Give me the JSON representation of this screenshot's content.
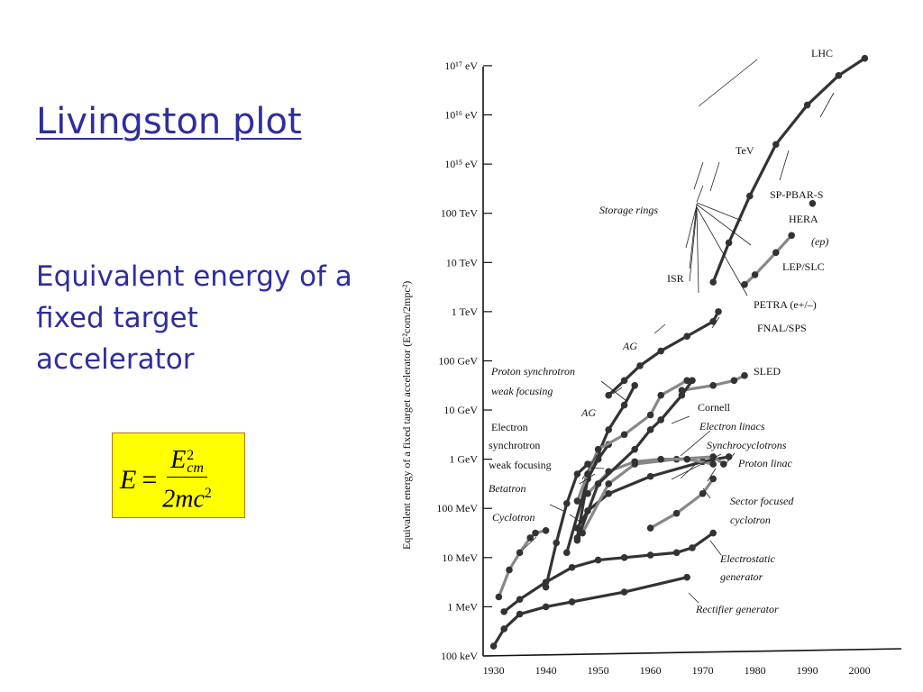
{
  "slide": {
    "title": "Livingston plot",
    "subtitle": "Equivalent energy of a fixed target accelerator",
    "formula": {
      "lhs": "E",
      "eq": "=",
      "num_base": "E",
      "num_sup": "2",
      "num_sub": "cm",
      "den_base": "2mc",
      "den_sup": "2"
    }
  },
  "chart_data": {
    "type": "line",
    "ylabel": "Equivalent energy of a fixed target accelerator (E²com/2mpc²)",
    "xlabel": "",
    "x_ticks": [
      "1930",
      "1940",
      "1950",
      "1960",
      "1970",
      "1980",
      "1990",
      "2000"
    ],
    "xlim": [
      1928,
      2008
    ],
    "y_scale": "log10 eV",
    "ylim_log10_eV": [
      5,
      17.2
    ],
    "y_ticks": [
      {
        "label": "100 keV",
        "log10": 5
      },
      {
        "label": "1 MeV",
        "log10": 6
      },
      {
        "label": "10 MeV",
        "log10": 7
      },
      {
        "label": "100 MeV",
        "log10": 8
      },
      {
        "label": "1 GeV",
        "log10": 9
      },
      {
        "label": "10 GeV",
        "log10": 10
      },
      {
        "label": "100 GeV",
        "log10": 11
      },
      {
        "label": "1 TeV",
        "log10": 12
      },
      {
        "label": "10 TeV",
        "log10": 13
      },
      {
        "label": "100 TeV",
        "log10": 14
      },
      {
        "label": "10¹⁵ eV",
        "log10": 15
      },
      {
        "label": "10¹⁶ eV",
        "log10": 16
      },
      {
        "label": "10¹⁷ eV",
        "log10": 17
      }
    ],
    "series": [
      {
        "name": "Rectifier generator",
        "color": "#333333",
        "points": [
          [
            1930,
            5.2
          ],
          [
            1932,
            5.55
          ],
          [
            1935,
            5.85
          ],
          [
            1940,
            6.0
          ],
          [
            1945,
            6.1
          ],
          [
            1955,
            6.3
          ],
          [
            1967,
            6.6
          ]
        ]
      },
      {
        "name": "Electrostatic generator",
        "color": "#333333",
        "points": [
          [
            1932,
            5.9
          ],
          [
            1935,
            6.15
          ],
          [
            1940,
            6.5
          ],
          [
            1945,
            6.8
          ],
          [
            1950,
            6.95
          ],
          [
            1955,
            7.0
          ],
          [
            1960,
            7.05
          ],
          [
            1965,
            7.1
          ],
          [
            1968,
            7.2
          ],
          [
            1972,
            7.5
          ]
        ]
      },
      {
        "name": "Cyclotron",
        "color": "#888888",
        "points": [
          [
            1931,
            6.2
          ],
          [
            1933,
            6.75
          ],
          [
            1935,
            7.1
          ],
          [
            1937,
            7.4
          ],
          [
            1938,
            7.5
          ],
          [
            1940,
            7.55
          ]
        ]
      },
      {
        "name": "Betatron",
        "color": "#333333",
        "points": [
          [
            1940,
            6.4
          ],
          [
            1942,
            7.3
          ],
          [
            1944,
            8.1
          ],
          [
            1946,
            8.7
          ],
          [
            1948,
            8.9
          ],
          [
            1950,
            9.0
          ]
        ]
      },
      {
        "name": "Electron synchrotron weak focusing",
        "color": "#333333",
        "points": [
          [
            1946,
            7.4
          ],
          [
            1948,
            8.6
          ],
          [
            1950,
            9.0
          ],
          [
            1952,
            9.3
          ]
        ]
      },
      {
        "name": "Proton synchrotron weak focusing",
        "color": "#333333",
        "points": [
          [
            1944,
            7.1
          ],
          [
            1948,
            8.6
          ],
          [
            1950,
            9.1
          ],
          [
            1952,
            9.6
          ],
          [
            1955,
            10.1
          ],
          [
            1957,
            10.5
          ]
        ]
      },
      {
        "name": "Synchrocyclotrons",
        "color": "#333333",
        "points": [
          [
            1946,
            7.6
          ],
          [
            1948,
            7.95
          ],
          [
            1952,
            8.3
          ],
          [
            1960,
            8.65
          ],
          [
            1970,
            8.95
          ],
          [
            1975,
            9.05
          ]
        ]
      },
      {
        "name": "Proton linac",
        "color": "#888888",
        "points": [
          [
            1947,
            7.5
          ],
          [
            1952,
            8.5
          ],
          [
            1957,
            8.9
          ],
          [
            1965,
            9.0
          ],
          [
            1972,
            9.05
          ],
          [
            1974,
            8.9
          ]
        ]
      },
      {
        "name": "Sector focused cyclotron",
        "color": "#888888",
        "points": [
          [
            1948,
            8.3
          ],
          [
            1952,
            8.75
          ],
          [
            1957,
            8.95
          ],
          [
            1962,
            9.0
          ],
          [
            1967,
            9.0
          ],
          [
            1972,
            8.9
          ]
        ]
      },
      {
        "name": "Cyclotron (sector)",
        "color": "#888888",
        "points": [
          [
            1960,
            7.6
          ],
          [
            1965,
            7.9
          ],
          [
            1970,
            8.3
          ],
          [
            1972,
            8.6
          ]
        ]
      },
      {
        "name": "Electron linacs",
        "color": "#888888",
        "points": [
          [
            1946,
            8.15
          ],
          [
            1948,
            8.7
          ],
          [
            1950,
            9.2
          ],
          [
            1955,
            9.5
          ],
          [
            1960,
            9.9
          ],
          [
            1962,
            10.3
          ],
          [
            1967,
            10.6
          ]
        ]
      },
      {
        "name": "AG proton",
        "color": "#333333",
        "points": [
          [
            1952,
            10.3
          ],
          [
            1955,
            10.6
          ],
          [
            1958,
            10.9
          ],
          [
            1962,
            11.2
          ],
          [
            1967,
            11.5
          ],
          [
            1972,
            11.8
          ],
          [
            1973,
            12.0
          ]
        ]
      },
      {
        "name": "SLED",
        "color": "#888888",
        "points": [
          [
            1966,
            10.4
          ],
          [
            1972,
            10.5
          ],
          [
            1976,
            10.6
          ],
          [
            1978,
            10.7
          ]
        ]
      },
      {
        "name": "Cornell",
        "color": "#333333",
        "points": [
          [
            1946,
            7.35
          ],
          [
            1950,
            8.5
          ],
          [
            1957,
            9.2
          ],
          [
            1960,
            9.6
          ],
          [
            1962,
            9.8
          ],
          [
            1966,
            10.3
          ],
          [
            1968,
            10.6
          ]
        ]
      },
      {
        "name": "Storage rings (ISR → LHC)",
        "color": "#333333",
        "points": [
          [
            1972,
            12.6
          ],
          [
            1975,
            13.4
          ],
          [
            1979,
            14.35
          ],
          [
            1984,
            15.4
          ],
          [
            1990,
            16.2
          ],
          [
            1996,
            16.8
          ],
          [
            2001,
            17.15
          ]
        ]
      },
      {
        "name": "PETRA / LEP/SLC",
        "color": "#888888",
        "points": [
          [
            1978,
            12.55
          ],
          [
            1980,
            12.75
          ],
          [
            1984,
            13.2
          ],
          [
            1987,
            13.55
          ]
        ]
      },
      {
        "name": "HERA (ep)",
        "color": "#333333",
        "points": [
          [
            1991,
            14.2
          ]
        ]
      }
    ],
    "annotations": [
      {
        "text": "LHC",
        "italic": false
      },
      {
        "text": "TeV",
        "italic": false
      },
      {
        "text": "SP-PBAR-S",
        "italic": false
      },
      {
        "text": "Storage rings",
        "italic": true
      },
      {
        "text": "HERA",
        "italic": false
      },
      {
        "text": "(ep)",
        "italic": true
      },
      {
        "text": "LEP/SLC",
        "italic": false
      },
      {
        "text": "ISR",
        "italic": false
      },
      {
        "text": "PETRA (e+/–)",
        "italic": false
      },
      {
        "text": "FNAL/SPS",
        "italic": false
      },
      {
        "text": "AG",
        "italic": true
      },
      {
        "text": "SLED",
        "italic": false
      },
      {
        "text": "Proton synchrotron",
        "italic": true
      },
      {
        "text": "weak focusing",
        "italic": true
      },
      {
        "text": "AG",
        "italic": true
      },
      {
        "text": "Cornell",
        "italic": false
      },
      {
        "text": "Electron",
        "italic": false
      },
      {
        "text": "Electron linacs",
        "italic": true
      },
      {
        "text": "synchrotron",
        "italic": false
      },
      {
        "text": "Synchrocyclotrons",
        "italic": true
      },
      {
        "text": "weak focusing",
        "italic": false
      },
      {
        "text": "Proton linac",
        "italic": true
      },
      {
        "text": "Betatron",
        "italic": true
      },
      {
        "text": "Sector focused",
        "italic": true
      },
      {
        "text": "cyclotron",
        "italic": true
      },
      {
        "text": "Cyclotron",
        "italic": true
      },
      {
        "text": "Electrostatic",
        "italic": true
      },
      {
        "text": "generator",
        "italic": true
      },
      {
        "text": "Rectifier generator",
        "italic": true
      }
    ]
  }
}
